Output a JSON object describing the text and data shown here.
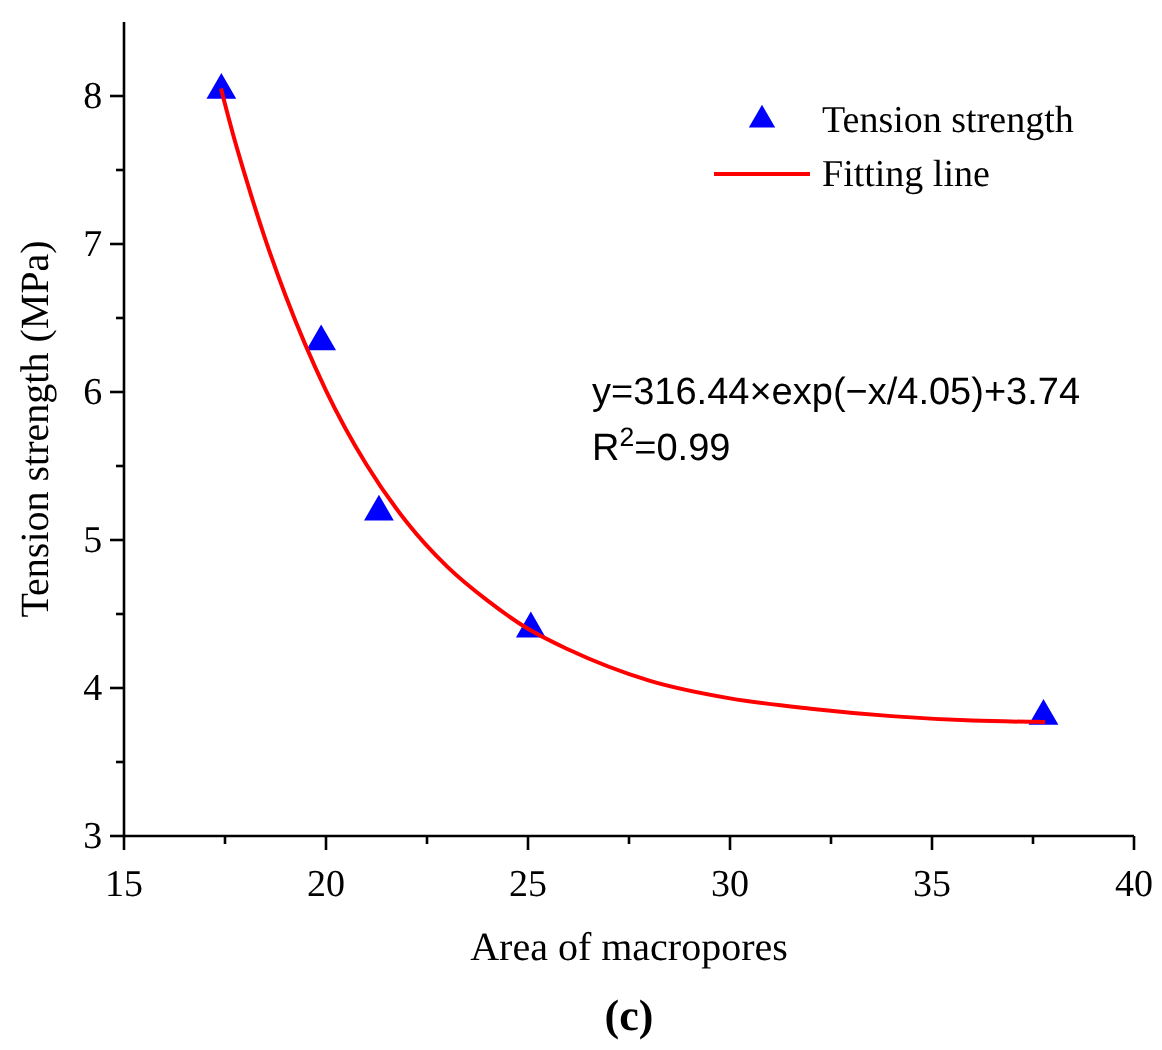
{
  "chart_data": {
    "type": "scatter",
    "xlabel": "Area of macropores",
    "ylabel": "Tension strength (MPa)",
    "xlim": [
      15,
      40
    ],
    "xticks": [
      15,
      {
        "value": 17.5,
        "label": null
      },
      20,
      {
        "value": 22.5,
        "label": null
      },
      25,
      {
        "value": 27.5,
        "label": null
      },
      30,
      {
        "value": 32.5,
        "label": null
      },
      35,
      {
        "value": 37.5,
        "label": null
      },
      40
    ],
    "ylim": [
      3,
      8.5
    ],
    "yticks": [
      3,
      {
        "value": 3.5,
        "label": null
      },
      4,
      {
        "value": 4.5,
        "label": null
      },
      5,
      {
        "value": 5.5,
        "label": null
      },
      6,
      {
        "value": 6.5,
        "label": null
      },
      7,
      {
        "value": 7.5,
        "label": null
      },
      8
    ],
    "grid": false,
    "legend": "top right",
    "series": [
      {
        "name": "Tension strength",
        "marker": "triangle",
        "color": "#0000ff",
        "x": [
          17.41,
          19.88,
          21.31,
          25.07,
          37.76
        ],
        "values": [
          8.04,
          6.34,
          5.19,
          4.4,
          3.81
        ]
      },
      {
        "name": "Fitting line",
        "type": "line",
        "color": "#ff0000",
        "line_style": "solid",
        "x": [
          17.4,
          17.7,
          18,
          18.5,
          19,
          20,
          21,
          22,
          23,
          24,
          25,
          26,
          28,
          30,
          32,
          34,
          36,
          37.8
        ],
        "values": [
          8.05,
          7.74,
          7.46,
          7.03,
          6.65,
          6.01,
          5.51,
          5.12,
          4.82,
          4.59,
          4.4,
          4.26,
          4.05,
          3.93,
          3.86,
          3.81,
          3.78,
          3.77
        ]
      }
    ],
    "annotations": [
      "y=316.44×exp(−x/4.05)+3.74",
      "R$^{2}$=0.99",
      "(c)"
    ]
  }
}
